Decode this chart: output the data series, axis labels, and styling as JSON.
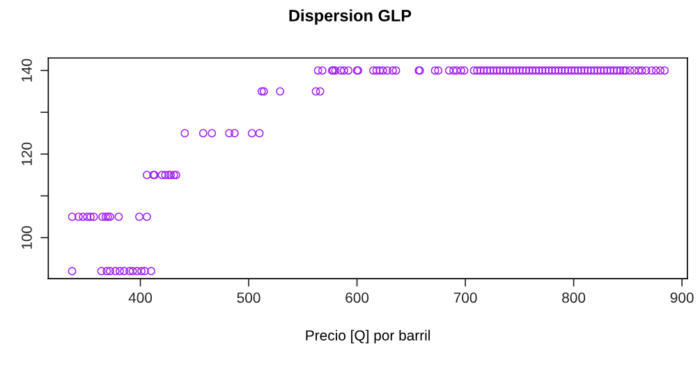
{
  "chart_data": {
    "type": "scatter",
    "title": "Dispersion GLP",
    "xlabel": "Precio [Q] por barril",
    "xlim": [
      315,
      905
    ],
    "xticks": [
      400,
      500,
      600,
      700,
      800,
      900
    ],
    "ylim": [
      90.2,
      143
    ],
    "yticks": [
      100,
      {
        "value": 110,
        "label": null
      },
      120,
      {
        "value": 130,
        "label": null
      },
      140
    ],
    "marker": "circle",
    "grid": false,
    "legend": false,
    "series": [
      {
        "color": "#a020f0",
        "x": [
          337,
          364,
          369,
          372,
          377,
          381,
          385,
          390,
          393,
          397,
          401,
          404,
          410,
          337,
          343,
          347,
          351,
          354,
          357,
          365,
          368,
          370,
          372,
          380,
          399,
          406,
          406,
          412,
          413,
          420,
          423,
          426,
          428,
          431,
          433,
          441,
          458,
          466,
          482,
          487,
          503,
          510,
          512,
          514,
          529,
          562,
          566,
          564,
          568,
          577,
          578,
          580,
          585,
          588,
          592,
          600,
          601,
          615,
          618,
          621,
          624,
          628,
          633,
          636,
          657,
          658,
          672,
          675,
          685,
          689,
          692,
          696,
          699,
          708,
          711,
          714,
          717,
          720,
          723,
          726,
          729,
          732,
          735,
          738,
          741,
          744,
          747,
          750,
          753,
          756,
          759,
          762,
          765,
          768,
          771,
          774,
          777,
          780,
          783,
          786,
          789,
          792,
          795,
          798,
          801,
          804,
          807,
          810,
          813,
          816,
          819,
          822,
          825,
          828,
          831,
          834,
          837,
          840,
          843,
          846,
          848,
          852,
          856,
          860,
          863,
          867,
          872,
          876,
          880,
          884
        ],
        "values": [
          92,
          92,
          92,
          92,
          92,
          92,
          92,
          92,
          92,
          92,
          92,
          92,
          92,
          105,
          105,
          105,
          105,
          105,
          105,
          105,
          105,
          105,
          105,
          105,
          105,
          105,
          115,
          115,
          115,
          115,
          115,
          115,
          115,
          115,
          115,
          125,
          125,
          125,
          125,
          125,
          125,
          125,
          135,
          135,
          135,
          135,
          135,
          140,
          140,
          140,
          140,
          140,
          140,
          140,
          140,
          140,
          140,
          140,
          140,
          140,
          140,
          140,
          140,
          140,
          140,
          140,
          140,
          140,
          140,
          140,
          140,
          140,
          140,
          140,
          140,
          140,
          140,
          140,
          140,
          140,
          140,
          140,
          140,
          140,
          140,
          140,
          140,
          140,
          140,
          140,
          140,
          140,
          140,
          140,
          140,
          140,
          140,
          140,
          140,
          140,
          140,
          140,
          140,
          140,
          140,
          140,
          140,
          140,
          140,
          140,
          140,
          140,
          140,
          140,
          140,
          140,
          140,
          140,
          140,
          140,
          140,
          140,
          140,
          140,
          140,
          140,
          140,
          140,
          140,
          140
        ]
      }
    ]
  }
}
